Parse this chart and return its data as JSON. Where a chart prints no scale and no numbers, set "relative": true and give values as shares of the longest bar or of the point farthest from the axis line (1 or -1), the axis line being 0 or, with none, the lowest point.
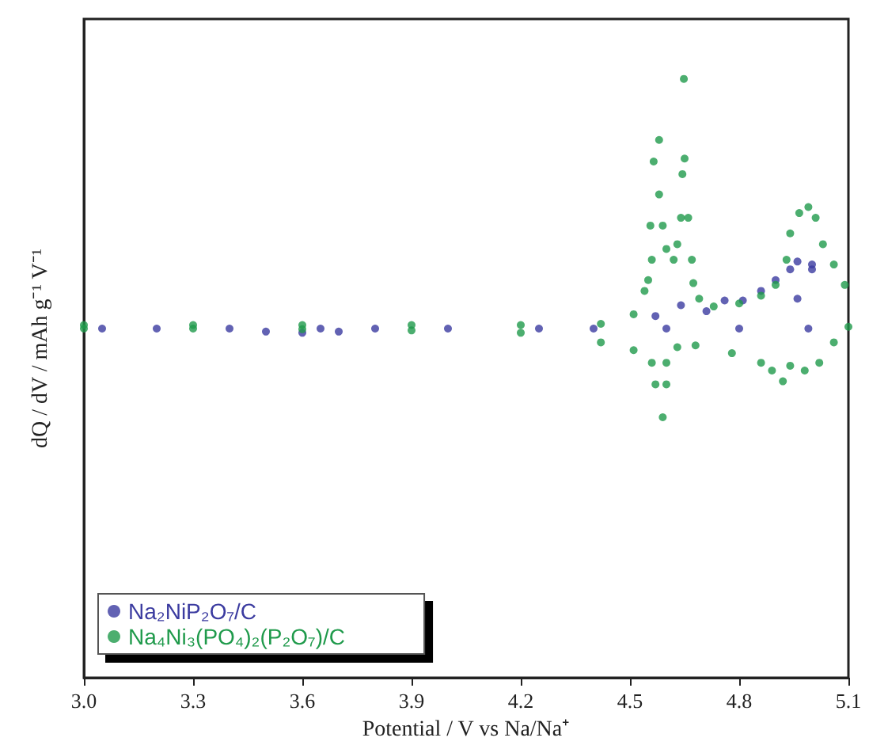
{
  "chart_data": {
    "type": "scatter",
    "relative": true,
    "xlabel": "Potential / V vs Na/Na⁺",
    "ylabel": "dQ / dV / mAh g⁻¹ V⁻¹",
    "xlim": [
      3.0,
      5.1
    ],
    "xticks": [
      {
        "value": 3,
        "label": "3.0"
      },
      3.3,
      3.6,
      3.9,
      4.2,
      4.5,
      4.8,
      5.1
    ],
    "tick_labels": "x",
    "grid": false,
    "legend": "bottom left",
    "marker": "circle",
    "series": [
      {
        "name": "Na₂NiP₂O₇/C",
        "color": "#3b3ba0",
        "x": [
          3.05,
          3.2,
          3.4,
          3.65,
          3.8,
          4.0,
          4.25,
          4.4,
          4.6,
          4.8,
          4.99,
          4.57,
          4.64,
          4.71,
          4.76,
          4.81,
          4.86,
          4.9,
          4.94,
          4.96,
          5.0,
          5.0,
          4.96,
          3.5,
          3.6,
          3.7
        ],
        "values": [
          0.583,
          0.583,
          0.583,
          0.583,
          0.583,
          0.583,
          0.583,
          0.583,
          0.583,
          0.583,
          0.583,
          0.604,
          0.622,
          0.612,
          0.63,
          0.63,
          0.646,
          0.664,
          0.682,
          0.695,
          0.69,
          0.682,
          0.633,
          0.578,
          0.576,
          0.578
        ]
      },
      {
        "name": "Na₄Ni₃(PO₄)₂(P₂O₇)/C",
        "color": "#1f9a4b",
        "x": [
          3.0,
          3.3,
          3.6,
          3.9,
          4.2,
          4.42,
          4.51,
          4.54,
          4.55,
          4.56,
          4.556,
          4.58,
          4.565,
          4.58,
          4.59,
          4.6,
          4.62,
          4.63,
          4.64,
          4.644,
          4.65,
          4.648,
          4.66,
          4.67,
          4.674,
          4.69,
          4.73,
          4.8,
          4.86,
          4.9,
          4.93,
          4.94,
          4.965,
          4.99,
          5.01,
          5.03,
          5.06,
          5.09,
          5.1,
          5.06,
          5.02,
          4.98,
          4.94,
          4.92,
          4.89,
          4.86,
          4.78,
          4.68,
          4.63,
          4.6,
          4.6,
          4.59,
          4.57,
          4.56,
          4.51,
          4.42,
          4.2,
          3.9,
          3.6,
          3.3,
          3.0
        ],
        "values": [
          0.589,
          0.589,
          0.589,
          0.589,
          0.589,
          0.591,
          0.607,
          0.646,
          0.664,
          0.698,
          0.755,
          0.807,
          0.862,
          0.898,
          0.755,
          0.716,
          0.698,
          0.724,
          0.768,
          0.841,
          0.867,
          1,
          0.768,
          0.698,
          0.659,
          0.633,
          0.62,
          0.625,
          0.638,
          0.656,
          0.698,
          0.742,
          0.776,
          0.786,
          0.768,
          0.724,
          0.69,
          0.656,
          0.586,
          0.56,
          0.526,
          0.513,
          0.521,
          0.495,
          0.513,
          0.526,
          0.542,
          0.555,
          0.552,
          0.526,
          0.49,
          0.435,
          0.49,
          0.526,
          0.547,
          0.56,
          0.576,
          0.58,
          0.582,
          0.583,
          0.583
        ]
      }
    ]
  }
}
